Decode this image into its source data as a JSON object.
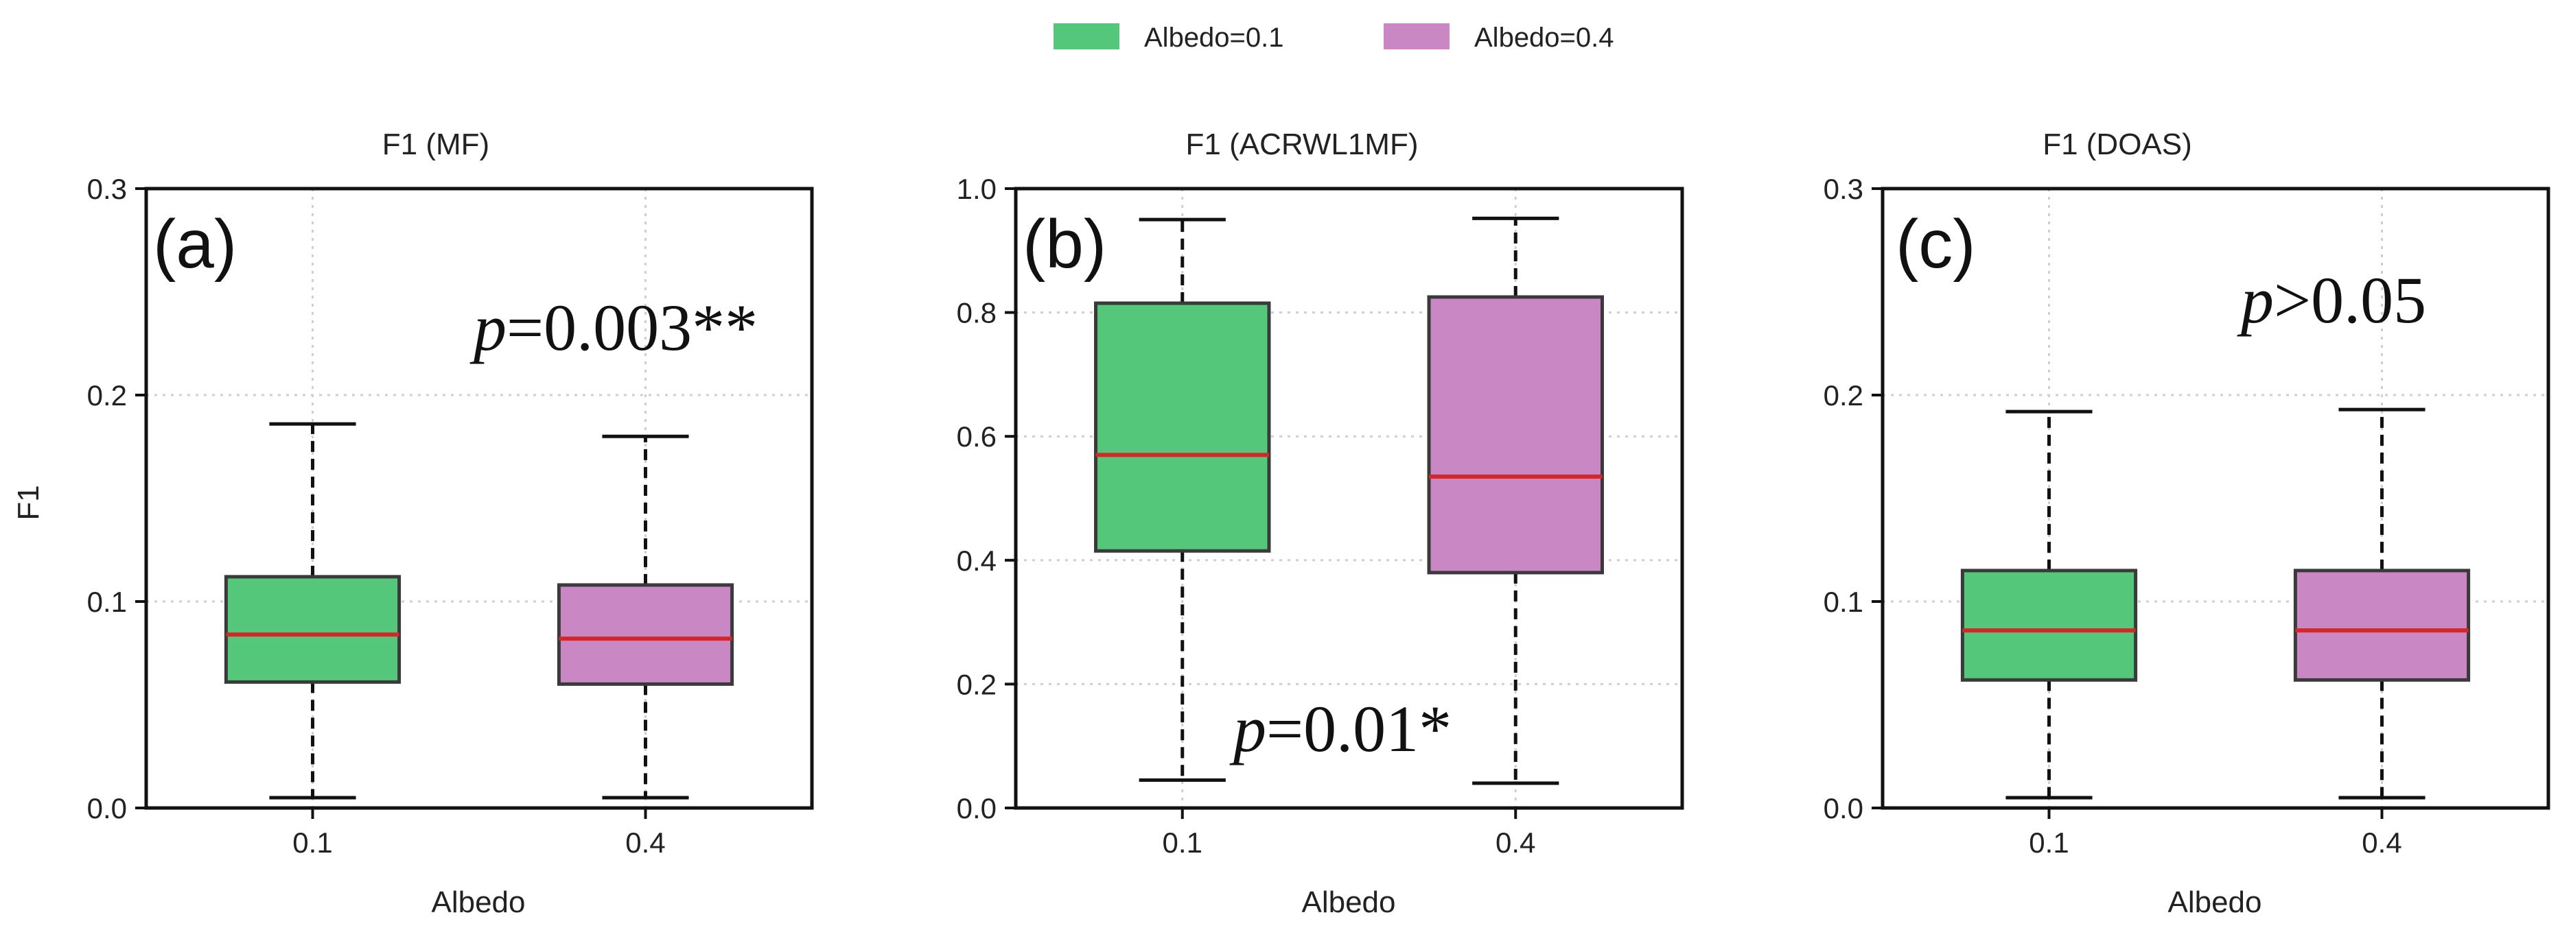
{
  "legend": {
    "items": [
      {
        "label": "Albedo=0.1",
        "color": "#55c77a"
      },
      {
        "label": "Albedo=0.4",
        "color": "#c987c4"
      }
    ]
  },
  "shared": {
    "xlabel": "Albedo",
    "ylabel": "F1",
    "median_color": "#d62728",
    "box_edge_color": "#3a3a3a",
    "grid_color": "#cfcfcf"
  },
  "chart_data": [
    {
      "type": "box",
      "panel_label": "(a)",
      "title": "F1 (MF)",
      "categories": [
        "0.1",
        "0.4"
      ],
      "ylim": [
        0,
        0.3
      ],
      "yticks": [
        "0.0",
        "0.1",
        "0.2",
        "0.3"
      ],
      "ytick_values": [
        0,
        0.1,
        0.2,
        0.3
      ],
      "annotation": {
        "p": "p",
        "rest": "=0.003**"
      },
      "boxes": [
        {
          "category": "0.1",
          "min": 0.005,
          "q1": 0.061,
          "median": 0.084,
          "q3": 0.112,
          "max": 0.186,
          "color": "#55c77a"
        },
        {
          "category": "0.4",
          "min": 0.005,
          "q1": 0.06,
          "median": 0.082,
          "q3": 0.108,
          "max": 0.18,
          "color": "#c987c4"
        }
      ]
    },
    {
      "type": "box",
      "panel_label": "(b)",
      "title": "F1 (ACRWL1MF)",
      "categories": [
        "0.1",
        "0.4"
      ],
      "ylim": [
        0,
        1.0
      ],
      "yticks": [
        "0.0",
        "0.2",
        "0.4",
        "0.6",
        "0.8",
        "1.0"
      ],
      "ytick_values": [
        0,
        0.2,
        0.4,
        0.6,
        0.8,
        1.0
      ],
      "annotation": {
        "p": "p",
        "rest": "=0.01*"
      },
      "boxes": [
        {
          "category": "0.1",
          "min": 0.045,
          "q1": 0.415,
          "median": 0.57,
          "q3": 0.815,
          "max": 0.95,
          "color": "#55c77a"
        },
        {
          "category": "0.4",
          "min": 0.04,
          "q1": 0.38,
          "median": 0.535,
          "q3": 0.825,
          "max": 0.952,
          "color": "#c987c4"
        }
      ]
    },
    {
      "type": "box",
      "panel_label": "(c)",
      "title": "F1 (DOAS)",
      "categories": [
        "0.1",
        "0.4"
      ],
      "ylim": [
        0,
        0.3
      ],
      "yticks": [
        "0.0",
        "0.1",
        "0.2",
        "0.3"
      ],
      "ytick_values": [
        0,
        0.1,
        0.2,
        0.3
      ],
      "annotation": {
        "p": "p",
        "rest": ">0.05"
      },
      "boxes": [
        {
          "category": "0.1",
          "min": 0.005,
          "q1": 0.062,
          "median": 0.086,
          "q3": 0.115,
          "max": 0.192,
          "color": "#55c77a"
        },
        {
          "category": "0.4",
          "min": 0.005,
          "q1": 0.062,
          "median": 0.086,
          "q3": 0.115,
          "max": 0.193,
          "color": "#c987c4"
        }
      ]
    }
  ]
}
